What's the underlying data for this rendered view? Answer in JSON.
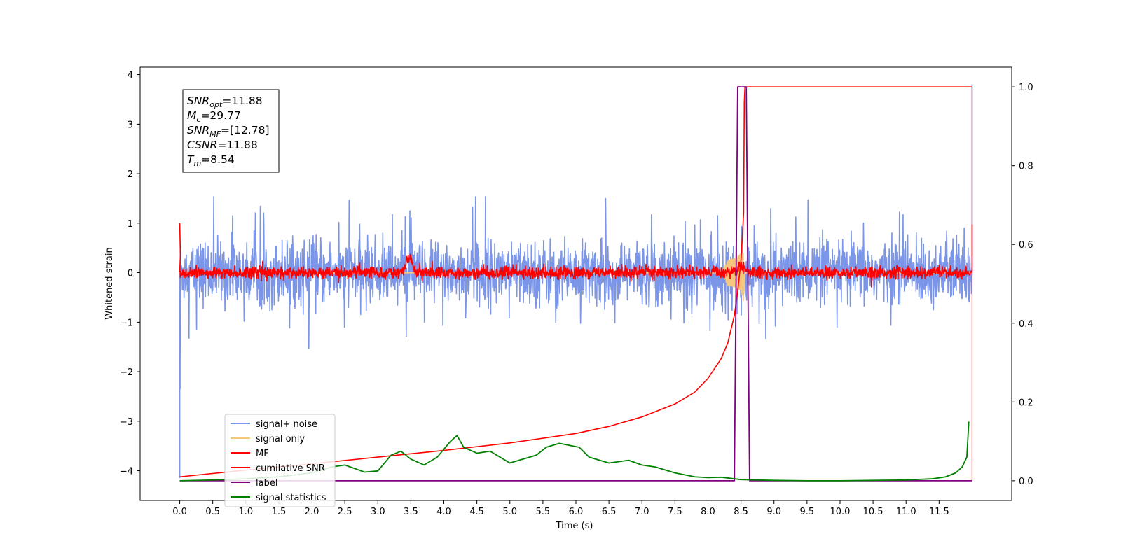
{
  "chart_data": {
    "type": "line",
    "xlabel": "Time (s)",
    "ylabel": "Whitened strain",
    "xlim": [
      -0.6,
      12.6
    ],
    "ylim_left": [
      -4.6,
      4.15
    ],
    "ylim_right": [
      -0.05,
      1.05
    ],
    "x_ticks": [
      0.0,
      0.5,
      1.0,
      1.5,
      2.0,
      2.5,
      3.0,
      3.5,
      4.0,
      4.5,
      5.0,
      5.5,
      6.0,
      6.5,
      7.0,
      7.5,
      8.0,
      8.5,
      9.0,
      9.5,
      10.0,
      10.5,
      11.0,
      11.5
    ],
    "x_tick_labels": [
      "0.0",
      "0.5",
      "1.0",
      "1.5",
      "2.0",
      "2.5",
      "3.0",
      "3.5",
      "4.0",
      "4.5",
      "5.0",
      "5.5",
      "6.0",
      "6.5",
      "7.0",
      "7.5",
      "8.0",
      "8.5",
      "9.0",
      "9.5",
      "10.0",
      "10.5",
      "11.0",
      "11.5"
    ],
    "y_ticks_left": [
      4,
      3,
      2,
      1,
      0,
      -1,
      -2,
      -3,
      -4
    ],
    "y_tick_labels_left": [
      "4",
      "3",
      "2",
      "1",
      "0",
      "−1",
      "−2",
      "−3",
      "−4"
    ],
    "y_ticks_right": [
      1.0,
      0.8,
      0.6,
      0.4,
      0.2,
      0.0
    ],
    "y_tick_labels_right": [
      "1.0",
      "0.8",
      "0.6",
      "0.4",
      "0.2",
      "0.0"
    ],
    "grid": false,
    "legend_position": "bottom-left",
    "annotation": {
      "lines": [
        {
          "var": "SNR",
          "sub": "opt",
          "value": "=11.88"
        },
        {
          "var": "M",
          "sub": "c",
          "value": "=29.77"
        },
        {
          "var": "SNR",
          "sub": "MF",
          "value": "=[12.78]"
        },
        {
          "var": "CSNR",
          "sub": "",
          "value": "=11.88"
        },
        {
          "var": "T",
          "sub": "m",
          "value": "=8.54"
        }
      ]
    },
    "series": [
      {
        "name": "signal+ noise",
        "color": "#7b96e8",
        "axis": "left",
        "kind": "noise",
        "x_range": [
          0.0,
          12.0
        ],
        "amplitude": 0.32,
        "extremes": [
          1.65,
          -1.55
        ],
        "spikes": [
          [
            0.0,
            -4.15
          ],
          [
            0.0,
            -2.35
          ],
          [
            12.0,
            3.8
          ],
          [
            12.0,
            1.5
          ]
        ]
      },
      {
        "name": "signal only",
        "color": "#f5c77e",
        "axis": "left",
        "kind": "chirp",
        "peak_time": 8.54,
        "peak_amplitude": 0.9,
        "start_time": 8.2
      },
      {
        "name": "MF",
        "color": "#ff0000",
        "axis": "left",
        "kind": "noise",
        "x_range": [
          0.0,
          12.0
        ],
        "amplitude": 0.06,
        "edge_values": [
          1.0,
          0.97
        ],
        "bumps": [
          [
            3.47,
            0.48
          ],
          [
            8.5,
            0.18
          ]
        ]
      },
      {
        "name": "cumilative SNR",
        "color": "#ff0000",
        "axis": "right",
        "x": [
          0.0,
          1.0,
          2.0,
          3.0,
          4.0,
          5.0,
          6.0,
          6.5,
          7.0,
          7.5,
          7.8,
          8.0,
          8.2,
          8.3,
          8.4,
          8.45,
          8.5,
          8.54,
          8.55,
          8.56,
          8.6,
          9.0,
          10.0,
          11.0,
          12.0
        ],
        "y": [
          0.01,
          0.027,
          0.043,
          0.06,
          0.077,
          0.096,
          0.12,
          0.138,
          0.162,
          0.195,
          0.225,
          0.26,
          0.31,
          0.35,
          0.42,
          0.48,
          0.56,
          0.68,
          0.96,
          1.0,
          1.0,
          1.0,
          1.0,
          1.0,
          1.0
        ]
      },
      {
        "name": "label",
        "color": "#800080",
        "axis": "right",
        "x": [
          0.0,
          8.4,
          8.45,
          8.48,
          8.51,
          8.58,
          8.63,
          12.0
        ],
        "y": [
          0.0,
          0.0,
          1.0,
          1.0,
          1.0,
          1.0,
          0.0,
          0.0
        ]
      },
      {
        "name": "signal statistics",
        "color": "#008000",
        "axis": "right",
        "x": [
          0.0,
          0.5,
          1.0,
          1.5,
          2.0,
          2.3,
          2.5,
          2.8,
          3.0,
          3.2,
          3.35,
          3.5,
          3.7,
          3.9,
          4.0,
          4.1,
          4.2,
          4.3,
          4.5,
          4.7,
          4.9,
          5.0,
          5.2,
          5.4,
          5.55,
          5.75,
          5.9,
          6.05,
          6.2,
          6.5,
          6.8,
          7.0,
          7.2,
          7.5,
          7.8,
          8.0,
          8.2,
          8.5,
          9.0,
          9.5,
          10.0,
          10.5,
          11.0,
          11.4,
          11.6,
          11.75,
          11.85,
          11.92,
          11.95
        ],
        "y": [
          0.0,
          0.002,
          0.005,
          0.01,
          0.02,
          0.035,
          0.04,
          0.022,
          0.025,
          0.065,
          0.075,
          0.055,
          0.04,
          0.06,
          0.08,
          0.1,
          0.115,
          0.085,
          0.07,
          0.075,
          0.055,
          0.045,
          0.055,
          0.065,
          0.085,
          0.095,
          0.09,
          0.085,
          0.06,
          0.045,
          0.052,
          0.04,
          0.035,
          0.02,
          0.01,
          0.008,
          0.009,
          0.003,
          0.001,
          0.0,
          0.0,
          0.001,
          0.002,
          0.005,
          0.01,
          0.02,
          0.035,
          0.06,
          0.15
        ]
      }
    ]
  }
}
